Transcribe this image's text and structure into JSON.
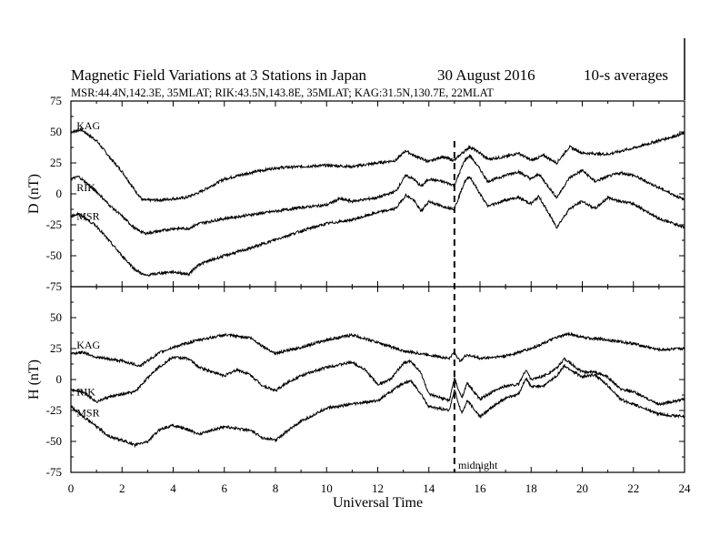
{
  "title": "Magnetic Field Variations at 3 Stations in Japan",
  "date": "30  August  2016",
  "averaging": "10-s averages",
  "subtitle": "MSR:44.4N,142.3E, 35MLAT;   RIK:43.5N,143.8E, 35MLAT;   KAG:31.5N,130.7E, 22MLAT",
  "colors": {
    "line": "#000000",
    "background": "#ffffff"
  },
  "chart_data": [
    {
      "type": "line",
      "panel": "D",
      "ylabel": "D (nT)",
      "xlabel": "",
      "xlim": [
        0,
        24
      ],
      "ylim": [
        -75,
        75
      ],
      "xticks": [
        0,
        2,
        4,
        6,
        8,
        10,
        12,
        14,
        16,
        18,
        20,
        22,
        24
      ],
      "yticks": [
        -75,
        -50,
        -25,
        0,
        25,
        50,
        75
      ],
      "ytick_labels": [
        "-75",
        "-50",
        "-25",
        "0",
        "25",
        "50",
        "75"
      ],
      "series": [
        {
          "name": "KAG",
          "label_at": [
            0.15,
            55
          ],
          "points": [
            [
              0,
              50
            ],
            [
              0.4,
              52
            ],
            [
              1,
              43
            ],
            [
              1.5,
              30
            ],
            [
              2,
              18
            ],
            [
              2.5,
              3
            ],
            [
              2.8,
              -5
            ],
            [
              3.5,
              -5
            ],
            [
              4.5,
              -3
            ],
            [
              5,
              1
            ],
            [
              6,
              12
            ],
            [
              7,
              17
            ],
            [
              8,
              21
            ],
            [
              9,
              22
            ],
            [
              10,
              23
            ],
            [
              11,
              22
            ],
            [
              12,
              25
            ],
            [
              12.7,
              27
            ],
            [
              13.1,
              35
            ],
            [
              13.4,
              31
            ],
            [
              14,
              26
            ],
            [
              14.5,
              30
            ],
            [
              15,
              27
            ],
            [
              15.3,
              33
            ],
            [
              15.6,
              38
            ],
            [
              16,
              33
            ],
            [
              16.3,
              28
            ],
            [
              17,
              30
            ],
            [
              17.5,
              33
            ],
            [
              18,
              27
            ],
            [
              18.5,
              31
            ],
            [
              19,
              25
            ],
            [
              19.5,
              38
            ],
            [
              20,
              33
            ],
            [
              21,
              32
            ],
            [
              22,
              37
            ],
            [
              23,
              43
            ],
            [
              24,
              49
            ]
          ]
        },
        {
          "name": "RIK",
          "label_at": [
            0.15,
            5
          ],
          "points": [
            [
              0,
              12
            ],
            [
              0.3,
              14
            ],
            [
              1,
              2
            ],
            [
              1.5,
              -9
            ],
            [
              2,
              -18
            ],
            [
              2.5,
              -28
            ],
            [
              2.9,
              -32
            ],
            [
              3.5,
              -30
            ],
            [
              4,
              -28
            ],
            [
              4.6,
              -28
            ],
            [
              5,
              -24
            ],
            [
              6,
              -20
            ],
            [
              7,
              -17
            ],
            [
              8,
              -14
            ],
            [
              9,
              -11
            ],
            [
              10,
              -9
            ],
            [
              10.5,
              -4
            ],
            [
              11,
              -6
            ],
            [
              12,
              -3
            ],
            [
              12.7,
              2
            ],
            [
              13.1,
              15
            ],
            [
              13.4,
              12
            ],
            [
              13.7,
              6
            ],
            [
              14,
              12
            ],
            [
              14.5,
              10
            ],
            [
              15,
              7
            ],
            [
              15.4,
              27
            ],
            [
              15.6,
              31
            ],
            [
              16,
              20
            ],
            [
              16.3,
              10
            ],
            [
              17,
              15
            ],
            [
              17.5,
              18
            ],
            [
              18,
              12
            ],
            [
              18.3,
              16
            ],
            [
              19,
              -3
            ],
            [
              19.5,
              13
            ],
            [
              20,
              19
            ],
            [
              20.5,
              10
            ],
            [
              21,
              14
            ],
            [
              21.5,
              17
            ],
            [
              22,
              15
            ],
            [
              23,
              5
            ],
            [
              24,
              -5
            ]
          ]
        },
        {
          "name": "MSR",
          "label_at": [
            0.15,
            -18
          ],
          "points": [
            [
              0,
              -18
            ],
            [
              0.3,
              -16
            ],
            [
              1,
              -26
            ],
            [
              1.5,
              -38
            ],
            [
              2,
              -50
            ],
            [
              2.5,
              -61
            ],
            [
              2.9,
              -66
            ],
            [
              3.5,
              -64
            ],
            [
              4,
              -63
            ],
            [
              4.6,
              -65
            ],
            [
              5,
              -57
            ],
            [
              6,
              -50
            ],
            [
              7,
              -44
            ],
            [
              8,
              -37
            ],
            [
              9,
              -30
            ],
            [
              10,
              -24
            ],
            [
              11,
              -21
            ],
            [
              12,
              -15
            ],
            [
              12.7,
              -12
            ],
            [
              13.1,
              -1
            ],
            [
              13.4,
              -5
            ],
            [
              13.7,
              -14
            ],
            [
              14,
              -6
            ],
            [
              14.5,
              -10
            ],
            [
              15,
              -12
            ],
            [
              15.4,
              10
            ],
            [
              15.6,
              14
            ],
            [
              16,
              0
            ],
            [
              16.3,
              -10
            ],
            [
              17,
              -5
            ],
            [
              17.5,
              -3
            ],
            [
              18,
              -8
            ],
            [
              18.3,
              -2
            ],
            [
              19,
              -27
            ],
            [
              19.5,
              -12
            ],
            [
              20,
              -6
            ],
            [
              20.5,
              -12
            ],
            [
              21,
              -3
            ],
            [
              21.5,
              -6
            ],
            [
              22,
              -8
            ],
            [
              23,
              -20
            ],
            [
              24,
              -27
            ]
          ]
        }
      ]
    },
    {
      "type": "line",
      "panel": "H",
      "ylabel": "H (nT)",
      "xlabel": "Universal Time",
      "xlim": [
        0,
        24
      ],
      "ylim": [
        -75,
        75
      ],
      "xticks": [
        0,
        2,
        4,
        6,
        8,
        10,
        12,
        14,
        16,
        18,
        20,
        22,
        24
      ],
      "xtick_labels": [
        "0",
        "2",
        "4",
        "6",
        "8",
        "10",
        "12",
        "14",
        "16",
        "18",
        "20",
        "22",
        "24"
      ],
      "yticks": [
        -75,
        -50,
        -25,
        0,
        25,
        50,
        75
      ],
      "ytick_labels": [
        "-75",
        "-50",
        "-25",
        "0",
        "25",
        "50",
        ""
      ],
      "series": [
        {
          "name": "KAG",
          "label_at": [
            0.15,
            28
          ],
          "points": [
            [
              0,
              21
            ],
            [
              0.5,
              22
            ],
            [
              1,
              18
            ],
            [
              2,
              15
            ],
            [
              2.7,
              11
            ],
            [
              3.5,
              22
            ],
            [
              4,
              26
            ],
            [
              5,
              32
            ],
            [
              6,
              36
            ],
            [
              7,
              34
            ],
            [
              7.5,
              27
            ],
            [
              8,
              21
            ],
            [
              9,
              26
            ],
            [
              10,
              32
            ],
            [
              11,
              36
            ],
            [
              12,
              30
            ],
            [
              13,
              23
            ],
            [
              14,
              20
            ],
            [
              14.8,
              17
            ],
            [
              15,
              22
            ],
            [
              15.2,
              15
            ],
            [
              15.5,
              20
            ],
            [
              16,
              17
            ],
            [
              17,
              19
            ],
            [
              18,
              25
            ],
            [
              19,
              34
            ],
            [
              19.5,
              37
            ],
            [
              20,
              34
            ],
            [
              21,
              32
            ],
            [
              22,
              29
            ],
            [
              23,
              24
            ],
            [
              24,
              25
            ]
          ]
        },
        {
          "name": "RIK",
          "label_at": [
            0.15,
            -10
          ],
          "points": [
            [
              0,
              -8
            ],
            [
              0.5,
              -10
            ],
            [
              1,
              -18
            ],
            [
              1.5,
              -14
            ],
            [
              2,
              -12
            ],
            [
              2.5,
              -10
            ],
            [
              3.3,
              8
            ],
            [
              4,
              18
            ],
            [
              4.6,
              17
            ],
            [
              5,
              10
            ],
            [
              6,
              3
            ],
            [
              6.5,
              8
            ],
            [
              7,
              4
            ],
            [
              7.5,
              -5
            ],
            [
              8,
              -9
            ],
            [
              8.5,
              -2
            ],
            [
              9,
              3
            ],
            [
              10,
              10
            ],
            [
              11,
              14
            ],
            [
              11.5,
              8
            ],
            [
              12,
              -4
            ],
            [
              12.5,
              0
            ],
            [
              13,
              13
            ],
            [
              13.3,
              15
            ],
            [
              13.7,
              5
            ],
            [
              14,
              -12
            ],
            [
              14.8,
              -17
            ],
            [
              15,
              1
            ],
            [
              15.2,
              -11
            ],
            [
              15.3,
              -14
            ],
            [
              15.5,
              -3
            ],
            [
              16,
              -16
            ],
            [
              16.5,
              -10
            ],
            [
              17,
              -5
            ],
            [
              17.5,
              -4
            ],
            [
              17.8,
              8
            ],
            [
              18,
              0
            ],
            [
              18.5,
              3
            ],
            [
              19,
              9
            ],
            [
              19.3,
              17
            ],
            [
              19.6,
              12
            ],
            [
              20,
              6
            ],
            [
              20.5,
              6
            ],
            [
              21,
              2
            ],
            [
              21.5,
              -8
            ],
            [
              22,
              -10
            ],
            [
              23,
              -20
            ],
            [
              24,
              -16
            ]
          ]
        },
        {
          "name": "MSR",
          "label_at": [
            0.15,
            -27
          ],
          "points": [
            [
              0,
              -22
            ],
            [
              0.5,
              -30
            ],
            [
              1,
              -38
            ],
            [
              1.5,
              -46
            ],
            [
              2,
              -49
            ],
            [
              2.5,
              -53
            ],
            [
              3,
              -50
            ],
            [
              3.5,
              -40
            ],
            [
              4,
              -37
            ],
            [
              4.5,
              -40
            ],
            [
              5,
              -44
            ],
            [
              6,
              -38
            ],
            [
              7,
              -41
            ],
            [
              7.5,
              -47
            ],
            [
              8,
              -49
            ],
            [
              8.5,
              -41
            ],
            [
              9,
              -34
            ],
            [
              10,
              -23
            ],
            [
              11,
              -20
            ],
            [
              12,
              -17
            ],
            [
              13,
              -3
            ],
            [
              13.3,
              -1
            ],
            [
              13.7,
              -12
            ],
            [
              14,
              -22
            ],
            [
              14.8,
              -25
            ],
            [
              15,
              -8
            ],
            [
              15.2,
              -22
            ],
            [
              15.3,
              -27
            ],
            [
              15.5,
              -17
            ],
            [
              16,
              -30
            ],
            [
              16.5,
              -22
            ],
            [
              17,
              -15
            ],
            [
              17.5,
              -12
            ],
            [
              17.8,
              1
            ],
            [
              18,
              -6
            ],
            [
              18.5,
              -5
            ],
            [
              19,
              3
            ],
            [
              19.3,
              11
            ],
            [
              19.6,
              7
            ],
            [
              20,
              2
            ],
            [
              20.5,
              4
            ],
            [
              21,
              -5
            ],
            [
              21.5,
              -16
            ],
            [
              22,
              -20
            ],
            [
              23,
              -28
            ],
            [
              24,
              -30
            ]
          ]
        }
      ]
    }
  ],
  "annotations": {
    "midnight_label": "midnight",
    "midnight_ut": 15
  }
}
